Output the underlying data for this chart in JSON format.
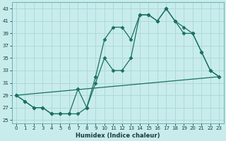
{
  "xlabel": "Humidex (Indice chaleur)",
  "bg_color": "#c8ecec",
  "grid_color": "#b0d8d8",
  "line_color": "#1a7060",
  "xlim": [
    -0.5,
    23.5
  ],
  "ylim": [
    24.5,
    44
  ],
  "yticks": [
    25,
    27,
    29,
    31,
    33,
    35,
    37,
    39,
    41,
    43
  ],
  "xticks": [
    0,
    1,
    2,
    3,
    4,
    5,
    6,
    7,
    8,
    9,
    10,
    11,
    12,
    13,
    14,
    15,
    16,
    17,
    18,
    19,
    20,
    21,
    22,
    23
  ],
  "line1_x": [
    0,
    1,
    2,
    3,
    4,
    5,
    6,
    7,
    8,
    9,
    10,
    11,
    12,
    13,
    14,
    15,
    16,
    17,
    18,
    19,
    20,
    21,
    22,
    23
  ],
  "line1_y": [
    29,
    28,
    27,
    27,
    26,
    26,
    26,
    26,
    27,
    31,
    35,
    33,
    33,
    35,
    42,
    42,
    41,
    43,
    41,
    39,
    39,
    36,
    33,
    32
  ],
  "line2_x": [
    0,
    1,
    2,
    3,
    4,
    5,
    6,
    7,
    8,
    9,
    10,
    11,
    12,
    13,
    14,
    15,
    16,
    17,
    18,
    19,
    20,
    21,
    22,
    23
  ],
  "line2_y": [
    29,
    28,
    27,
    27,
    26,
    26,
    26,
    30,
    27,
    32,
    38,
    40,
    40,
    38,
    42,
    42,
    41,
    43,
    41,
    40,
    39,
    36,
    33,
    32
  ],
  "line3_x": [
    0,
    23
  ],
  "line3_y": [
    29,
    32
  ],
  "marker": "D",
  "markersize": 2.5
}
